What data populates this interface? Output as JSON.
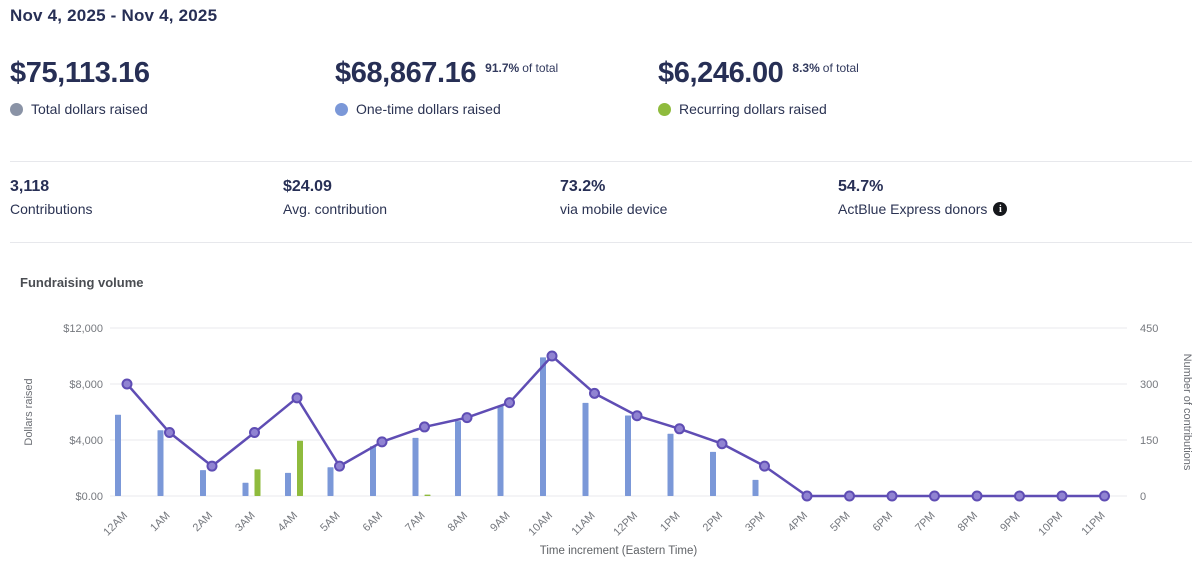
{
  "date_range": "Nov 4, 2025 - Nov 4, 2025",
  "colors": {
    "heading_text": "#272f55",
    "total_dot": "#8a93a6",
    "one_time_blue": "#7b98d8",
    "recurring_green": "#8fbb3d",
    "line_purple": "#5f4db4",
    "marker_fill": "#9083d2",
    "grid": "#e9e9ee",
    "axis_text": "#75787e"
  },
  "summary_stats": [
    {
      "value": "$75,113.16",
      "pct": "",
      "pct_suffix": "",
      "label": "Total dollars raised",
      "dot_color": "#8a93a6"
    },
    {
      "value": "$68,867.16",
      "pct": "91.7%",
      "pct_suffix": "of total",
      "label": "One-time dollars raised",
      "dot_color": "#7b98d8"
    },
    {
      "value": "$6,246.00",
      "pct": "8.3%",
      "pct_suffix": "of total",
      "label": "Recurring dollars raised",
      "dot_color": "#8fbb3d"
    }
  ],
  "metrics": [
    {
      "value": "3,118",
      "label": "Contributions",
      "info_icon": false
    },
    {
      "value": "$24.09",
      "label": "Avg. contribution",
      "info_icon": false
    },
    {
      "value": "73.2%",
      "label": "via mobile device",
      "info_icon": false
    },
    {
      "value": "54.7%",
      "label": "ActBlue Express donors",
      "info_icon": true
    }
  ],
  "chart_title": "Fundraising volume",
  "chart_data": {
    "type": "combo-bar-line",
    "title": "Fundraising volume",
    "xlabel": "Time increment (Eastern Time)",
    "grid": true,
    "categories": [
      "12AM",
      "1AM",
      "2AM",
      "3AM",
      "4AM",
      "5AM",
      "6AM",
      "7AM",
      "8AM",
      "9AM",
      "10AM",
      "11AM",
      "12PM",
      "1PM",
      "2PM",
      "3PM",
      "4PM",
      "5PM",
      "6PM",
      "7PM",
      "8PM",
      "9PM",
      "10PM",
      "11PM"
    ],
    "series": [
      {
        "name": "One-time dollars raised",
        "type": "bar",
        "axis": "left",
        "color": "#7b98d8",
        "values": [
          5800,
          4700,
          1850,
          950,
          1650,
          2050,
          3550,
          4150,
          5350,
          6450,
          9900,
          6650,
          5750,
          4450,
          3150,
          1150,
          0,
          0,
          0,
          0,
          0,
          0,
          0,
          0
        ]
      },
      {
        "name": "Recurring dollars raised",
        "type": "bar",
        "axis": "left",
        "color": "#8fbb3d",
        "values": [
          0,
          0,
          0,
          1900,
          3950,
          0,
          0,
          100,
          0,
          0,
          0,
          0,
          0,
          0,
          0,
          0,
          0,
          0,
          0,
          0,
          0,
          0,
          0,
          0
        ]
      },
      {
        "name": "Number of contributions",
        "type": "line",
        "axis": "right",
        "color": "#5f4db4",
        "values": [
          300,
          170,
          80,
          170,
          263,
          80,
          145,
          185,
          210,
          250,
          375,
          275,
          215,
          180,
          140,
          80,
          0,
          0,
          0,
          0,
          0,
          0,
          0,
          0
        ]
      }
    ],
    "left_axis": {
      "label": "Dollars raised",
      "min": 0,
      "max": 12000,
      "ticks": [
        0,
        4000,
        8000,
        12000
      ],
      "tick_labels": [
        "$0.00",
        "$4,000",
        "$8,000",
        "$12,000"
      ]
    },
    "right_axis": {
      "label": "Number of contributions",
      "min": 0,
      "max": 450,
      "ticks": [
        0,
        150,
        300,
        450
      ],
      "tick_labels": [
        "0",
        "150",
        "300",
        "450"
      ]
    }
  }
}
